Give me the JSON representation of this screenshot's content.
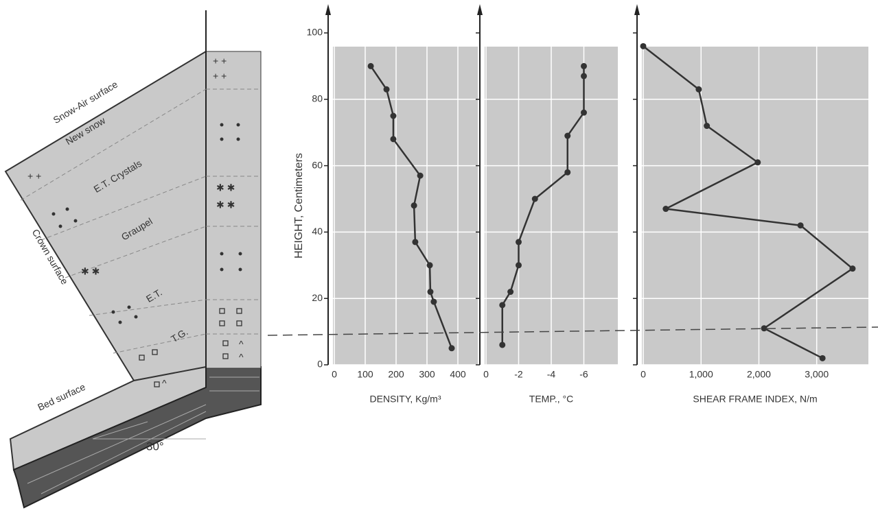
{
  "diagram": {
    "labels": [
      "Snow-Air surface",
      "New snow",
      "E.T. Crystals",
      "Graupel",
      "E.T.",
      "T.G.",
      "Crown surface",
      "Bed surface",
      "30°"
    ]
  },
  "chart_data": [
    {
      "type": "line",
      "x_label": "DENSITY, Kg/m³",
      "y_label": "HEIGHT, Centimeters",
      "color": "#333333",
      "grid": true,
      "x": [
        118,
        169,
        191,
        191,
        278,
        258,
        262,
        309,
        311,
        322,
        380
      ],
      "values": [
        90,
        83,
        75,
        68,
        57,
        48,
        37,
        30,
        22,
        19,
        5
      ],
      "xlim": [
        0,
        460
      ],
      "xticks": [
        0,
        100,
        200,
        300,
        400
      ],
      "ylim": [
        0,
        100
      ],
      "yticks": [
        0,
        20,
        40,
        60,
        80,
        100
      ]
    },
    {
      "type": "line",
      "x_label": "TEMP., °C",
      "color": "#333333",
      "grid": true,
      "x": [
        -6,
        -6,
        -6,
        -5,
        -5,
        -3,
        -2,
        -2,
        -1.5,
        -1,
        -1
      ],
      "values": [
        90,
        87,
        76,
        69,
        58,
        50,
        37,
        30,
        22,
        18,
        6
      ],
      "xlim": [
        0,
        -8
      ],
      "xticks": [
        0,
        -2,
        -4,
        -6
      ],
      "ylim": [
        0,
        100
      ],
      "yticks": [
        0,
        20,
        40,
        60,
        80,
        100
      ]
    },
    {
      "type": "line",
      "x_label": "SHEAR FRAME INDEX, N/m",
      "color": "#333333",
      "grid": true,
      "x": [
        0,
        960,
        1100,
        1980,
        390,
        2720,
        3620,
        2090,
        3100
      ],
      "values": [
        96,
        83,
        72,
        61,
        47,
        42,
        29,
        11,
        2
      ],
      "xlim": [
        0,
        3870
      ],
      "xticks": [
        0,
        {
          "value": 1000,
          "label": "1,000"
        },
        {
          "value": 2000,
          "label": "2,000"
        },
        {
          "value": 3000,
          "label": "3,000"
        }
      ],
      "ylim": [
        0,
        100
      ],
      "yticks": [
        0,
        20,
        40,
        60,
        80,
        100
      ]
    }
  ]
}
